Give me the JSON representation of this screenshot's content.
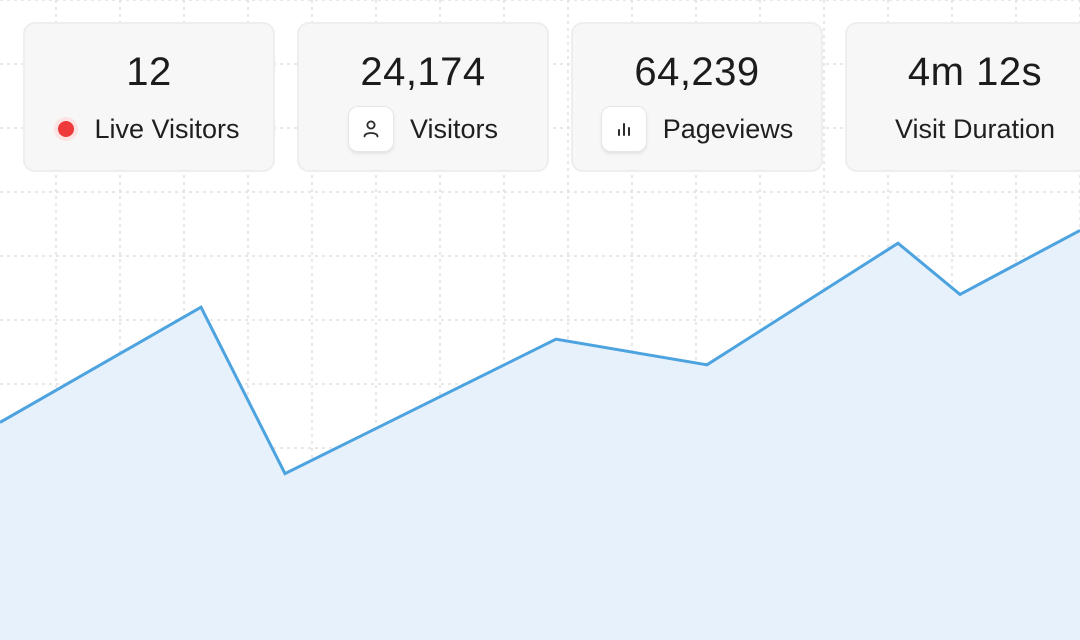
{
  "stats": [
    {
      "value": "12",
      "label": "Live Visitors",
      "icon": "live-dot"
    },
    {
      "value": "24,174",
      "label": "Visitors",
      "icon": "user-icon"
    },
    {
      "value": "64,239",
      "label": "Pageviews",
      "icon": "bar-chart-icon"
    },
    {
      "value": "4m 12s",
      "label": "Visit Duration",
      "icon": ""
    }
  ],
  "colors": {
    "line": "#4da3df",
    "area": "#e6f1fb",
    "live": "#ee3a3a",
    "grid": "#d9d9dc"
  },
  "chart_data": {
    "type": "area",
    "grid": true,
    "series": [
      {
        "values": [
          0.34,
          0.52,
          0.26,
          0.47,
          0.43,
          0.62,
          0.54,
          0.64
        ]
      }
    ]
  }
}
